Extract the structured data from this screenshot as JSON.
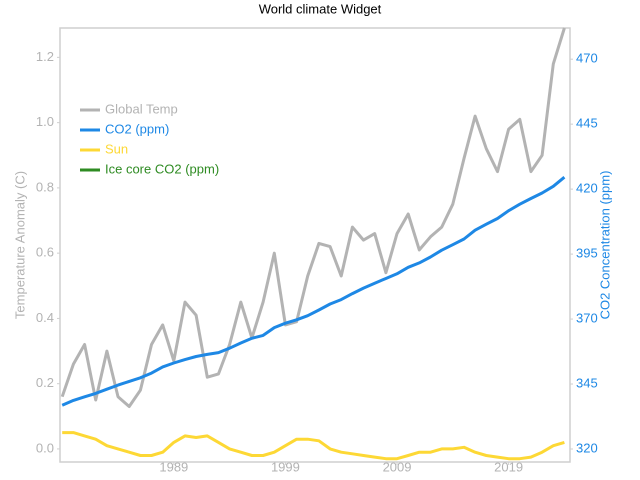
{
  "chart_data": {
    "type": "line",
    "title": "World climate Widget",
    "y_label": "Temperature Anomaly (C)",
    "y2_label": "CO2 Concentration (ppm)",
    "x": [
      1979,
      1980,
      1981,
      1982,
      1983,
      1984,
      1985,
      1986,
      1987,
      1988,
      1989,
      1990,
      1991,
      1992,
      1993,
      1994,
      1995,
      1996,
      1997,
      1998,
      1999,
      2000,
      2001,
      2002,
      2003,
      2004,
      2005,
      2006,
      2007,
      2008,
      2009,
      2010,
      2011,
      2012,
      2013,
      2014,
      2015,
      2016,
      2017,
      2018,
      2019,
      2020,
      2021,
      2022,
      2023,
      2024
    ],
    "xlim": [
      1978.8,
      2024.5
    ],
    "xticks": [
      1989,
      1999,
      2009,
      2019
    ],
    "ylim": [
      -0.04,
      1.29
    ],
    "yticks": [
      {
        "value": 0,
        "label": "0.0"
      },
      0.2,
      0.4,
      0.6,
      0.8,
      {
        "value": 1,
        "label": "1.0"
      },
      1.2
    ],
    "y2lim": [
      315,
      482
    ],
    "y2ticks": [
      320,
      345,
      370,
      395,
      420,
      445,
      470
    ],
    "grid": false,
    "legend": "upper left",
    "series": [
      {
        "name": "Global Temp",
        "color": "#b3b3b3",
        "axis": "y",
        "values": [
          0.16,
          0.26,
          0.32,
          0.15,
          0.3,
          0.16,
          0.13,
          0.18,
          0.32,
          0.38,
          0.27,
          0.45,
          0.41,
          0.22,
          0.23,
          0.32,
          0.45,
          0.34,
          0.45,
          0.6,
          0.38,
          0.39,
          0.53,
          0.63,
          0.62,
          0.53,
          0.68,
          0.64,
          0.66,
          0.54,
          0.66,
          0.72,
          0.61,
          0.65,
          0.68,
          0.75,
          0.89,
          1.02,
          0.92,
          0.85,
          0.98,
          1.01,
          0.85,
          0.9,
          1.18,
          1.29
        ]
      },
      {
        "name": "CO2 (ppm)",
        "color": "#1e88e5",
        "axis": "y2",
        "values": [
          336.8,
          338.7,
          340.1,
          341.4,
          343.0,
          344.6,
          346.0,
          347.4,
          349.2,
          351.6,
          353.1,
          354.4,
          355.6,
          356.4,
          357.1,
          358.8,
          360.8,
          362.6,
          363.7,
          366.7,
          368.4,
          369.7,
          371.3,
          373.5,
          375.8,
          377.5,
          379.8,
          381.9,
          383.8,
          385.6,
          387.4,
          389.9,
          391.6,
          393.9,
          396.5,
          398.6,
          400.8,
          404.2,
          406.5,
          408.7,
          411.7,
          414.2,
          416.4,
          418.5,
          421.1,
          424.6
        ]
      },
      {
        "name": "Sun",
        "color": "#fdd835",
        "axis": "y",
        "values": [
          0.05,
          0.05,
          0.04,
          0.03,
          0.01,
          0.0,
          -0.01,
          -0.02,
          -0.02,
          -0.01,
          0.02,
          0.04,
          0.035,
          0.04,
          0.02,
          0.0,
          -0.01,
          -0.02,
          -0.02,
          -0.01,
          0.01,
          0.03,
          0.03,
          0.025,
          0.0,
          -0.01,
          -0.015,
          -0.02,
          -0.025,
          -0.03,
          -0.03,
          -0.02,
          -0.01,
          -0.01,
          0.0,
          0.0,
          0.005,
          -0.01,
          -0.02,
          -0.025,
          -0.03,
          -0.03,
          -0.025,
          -0.01,
          0.01,
          0.02
        ]
      },
      {
        "name": "Ice core CO2 (ppm)",
        "color": "#2e8b22",
        "axis": "y2",
        "values": [
          null,
          null,
          null,
          null,
          null,
          null,
          null,
          null,
          null,
          null,
          null,
          null,
          null,
          null,
          null,
          null,
          null,
          null,
          null,
          null,
          null,
          null,
          null,
          null,
          null,
          null,
          null,
          null,
          null,
          null,
          null,
          null,
          null,
          null,
          null,
          null,
          null,
          null,
          null,
          null,
          null,
          null,
          null,
          null,
          null,
          null
        ]
      }
    ]
  }
}
